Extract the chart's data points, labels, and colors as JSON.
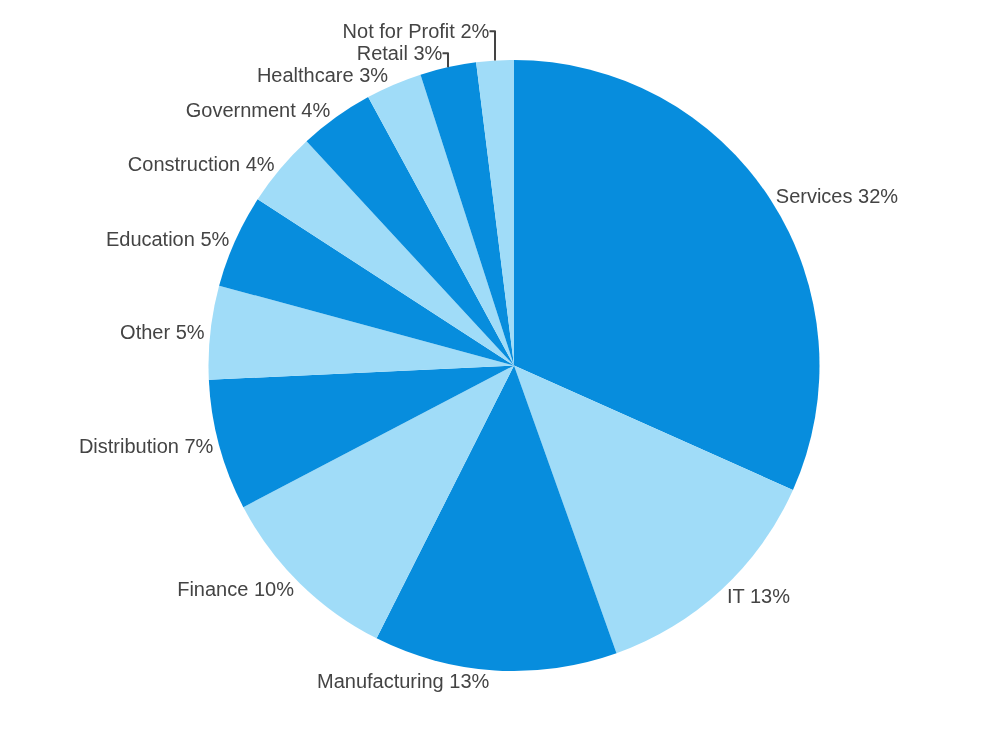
{
  "chart_data": {
    "type": "pie",
    "categories": [
      "Services",
      "IT",
      "Manufacturing",
      "Finance",
      "Distribution",
      "Other",
      "Education",
      "Construction",
      "Government",
      "Healthcare",
      "Retail",
      "Not for Profit"
    ],
    "values": [
      32,
      13,
      13,
      10,
      7,
      5,
      5,
      4,
      4,
      3,
      3,
      2
    ],
    "value_labels": [
      "32%",
      "13%",
      "13%",
      "10%",
      "7%",
      "5%",
      "5%",
      "4%",
      "4%",
      "3%",
      "3%",
      "2%"
    ],
    "colors": [
      "#078ddd",
      "#a0dcf8",
      "#078ddd",
      "#a0dcf8",
      "#078ddd",
      "#a0dcf8",
      "#078ddd",
      "#a0dcf8",
      "#078ddd",
      "#a0dcf8",
      "#078ddd",
      "#a0dcf8"
    ],
    "legend": false
  }
}
